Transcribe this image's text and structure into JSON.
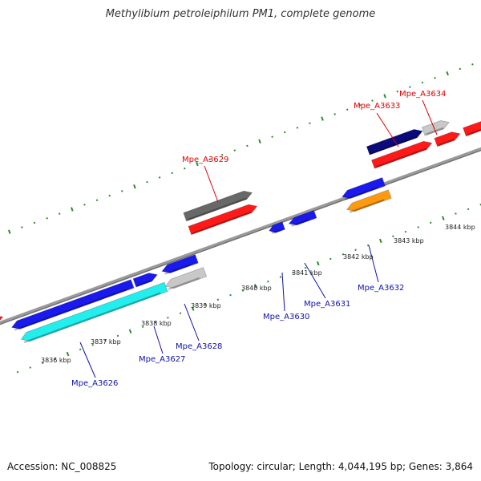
{
  "title": "Methylibium petroleiphilum PM1, complete genome",
  "footer": {
    "accession": "Accession: NC_008825",
    "topology": "Topology: circular; Length: 4,044,195 bp; Genes: 3,864"
  },
  "colors": {
    "backbone": "#8c8c8c",
    "tick": "#2e8b2e",
    "label_top": "#dd0000",
    "label_bottom": "#1111aa",
    "red": "#ff1a1a",
    "blue": "#1a1aee",
    "navy": "#0a0a7a",
    "cyan": "#22eeee",
    "gray_dark": "#686868",
    "gray_light": "#c8c8c8",
    "orange": "#ff9a10"
  },
  "kbp_labels": [
    "3836 kbp",
    "3837 kbp",
    "3838 kbp",
    "3839 kbp",
    "3840 kbp",
    "3841 kbp",
    "3842 kbp",
    "3843 kbp",
    "3844 kbp"
  ],
  "gene_labels": {
    "top": [
      "Mpe_A3629",
      "Mpe_A3633",
      "Mpe_A3634"
    ],
    "bottom": [
      "Mpe_A3626",
      "Mpe_A3627",
      "Mpe_A3628",
      "Mpe_A3630",
      "Mpe_A3631",
      "Mpe_A3632"
    ]
  },
  "genes": [
    {
      "name": "gene-left-red",
      "color": "red",
      "strand": 1
    },
    {
      "name": "gene-mpe-a3629-gray",
      "color": "gray_dark",
      "strand": 1
    },
    {
      "name": "gene-mpe-a3629-red",
      "color": "red",
      "strand": 1
    },
    {
      "name": "gene-mpe-a3633",
      "color": "navy",
      "strand": 1
    },
    {
      "name": "gene-mpe-a3634",
      "color": "gray_light",
      "strand": 1
    },
    {
      "name": "gene-red-upper-1",
      "color": "red",
      "strand": 1
    },
    {
      "name": "gene-red-upper-2",
      "color": "red",
      "strand": 1
    },
    {
      "name": "gene-red-upper-3",
      "color": "red",
      "strand": 1
    },
    {
      "name": "gene-blue-long",
      "color": "blue",
      "strand": -1
    },
    {
      "name": "gene-mpe-a3626",
      "color": "cyan",
      "strand": -1
    },
    {
      "name": "gene-mpe-a3627",
      "color": "blue",
      "strand": 1
    },
    {
      "name": "gene-mpe-a3628-blue",
      "color": "blue",
      "strand": -1
    },
    {
      "name": "gene-mpe-a3628-gray",
      "color": "gray_light",
      "strand": -1
    },
    {
      "name": "gene-mpe-a3630",
      "color": "blue",
      "strand": -1
    },
    {
      "name": "gene-mpe-a3631",
      "color": "blue",
      "strand": -1
    },
    {
      "name": "gene-mpe-a3632-blue",
      "color": "blue",
      "strand": -1
    },
    {
      "name": "gene-mpe-a3632-orange",
      "color": "orange",
      "strand": -1
    }
  ]
}
